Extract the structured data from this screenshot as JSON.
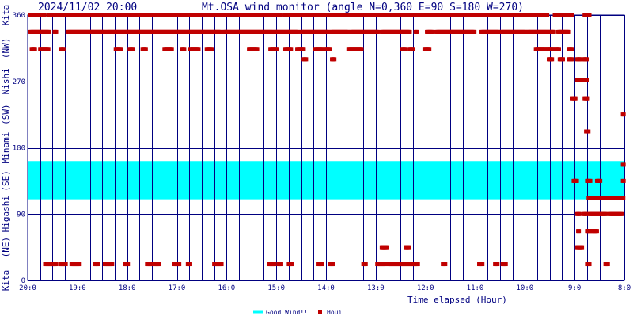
{
  "header": {
    "timestamp": "2024/11/02 20:00",
    "title": "Mt.OSA wind monitor (angle N=0,360 E=90 S=180 W=270)"
  },
  "chart_data": {
    "type": "scatter",
    "xlabel": "Time elapsed (Hour)",
    "x_ticks": [
      "20:0",
      "19:0",
      "18:0",
      "17:0",
      "16:0",
      "15:0",
      "14:0",
      "13:0",
      "12:0",
      "11:0",
      "10:0",
      "9:0",
      "8:0"
    ],
    "y_ticks": [
      "0",
      "90",
      "180",
      "270",
      "360"
    ],
    "ylim": [
      0,
      360
    ],
    "x_hours_range": [
      20,
      8
    ],
    "left_axis_labels": [
      "Kita",
      "(NE)",
      "Higashi",
      "(SE)",
      "Minami",
      "(SW)",
      "Nishi",
      "(NW)",
      "Kita"
    ],
    "good_wind_band": {
      "from_deg": 110,
      "to_deg": 162,
      "color": "#00ffff"
    },
    "series": [
      {
        "name": "Houi",
        "color": "#c00000",
        "rows": [
          {
            "deg": 360,
            "ranges": [
              [
                19.96,
                19.65
              ],
              [
                19.57,
                18.7
              ],
              [
                18.66,
                18.3
              ],
              [
                18.26,
                17.4
              ],
              [
                17.36,
                16.05
              ],
              [
                16.0,
                15.1
              ],
              [
                15.05,
                14.9
              ],
              [
                14.82,
                14.62
              ],
              [
                14.55,
                14.3
              ],
              [
                14.25,
                13.45
              ],
              [
                13.4,
                12.45
              ],
              [
                12.42,
                11.55
              ],
              [
                11.5,
                10.9
              ],
              [
                10.87,
                10.63
              ],
              [
                10.6,
                10.25
              ],
              [
                10.2,
                9.8
              ],
              [
                9.75,
                9.55
              ],
              [
                9.4,
                9.25
              ],
              [
                9.2,
                9.05
              ],
              [
                8.8,
                8.7
              ]
            ]
          },
          {
            "deg": 337,
            "ranges": [
              [
                19.95,
                19.56
              ],
              [
                19.46,
                19.42
              ],
              [
                19.2,
                18.42
              ],
              [
                18.4,
                16.8
              ],
              [
                16.78,
                16.1
              ],
              [
                16.06,
                15.05
              ],
              [
                15.03,
                14.55
              ],
              [
                14.5,
                13.95
              ],
              [
                13.9,
                13.55
              ],
              [
                13.5,
                12.95
              ],
              [
                12.88,
                12.3
              ],
              [
                12.2,
                12.16
              ],
              [
                11.97,
                11.85
              ],
              [
                11.78,
                11.0
              ],
              [
                10.88,
                10.5
              ],
              [
                10.47,
                9.98
              ],
              [
                9.95,
                9.55
              ],
              [
                9.53,
                9.4
              ],
              [
                9.33,
                9.1
              ]
            ]
          },
          {
            "deg": 314,
            "ranges": [
              [
                19.92,
                19.85
              ],
              [
                19.75,
                19.58
              ],
              [
                19.33,
                19.28
              ],
              [
                18.23,
                18.12
              ],
              [
                17.95,
                17.88
              ],
              [
                17.69,
                17.62
              ],
              [
                17.25,
                17.1
              ],
              [
                16.9,
                16.85
              ],
              [
                16.73,
                16.55
              ],
              [
                16.4,
                16.3
              ],
              [
                15.55,
                15.38
              ],
              [
                15.12,
                14.98
              ],
              [
                14.82,
                14.7
              ],
              [
                14.58,
                14.44
              ],
              [
                14.22,
                14.07
              ],
              [
                14.02,
                13.92
              ],
              [
                13.55,
                13.28
              ],
              [
                12.47,
                12.4
              ],
              [
                12.32,
                12.25
              ],
              [
                12.02,
                11.92
              ],
              [
                9.78,
                9.7
              ],
              [
                9.7,
                9.6
              ],
              [
                9.57,
                9.42
              ],
              [
                9.38,
                9.3
              ],
              [
                9.12,
                9.05
              ]
            ]
          },
          {
            "deg": 300,
            "ranges": [
              [
                14.45,
                14.4
              ],
              [
                13.88,
                13.82
              ],
              [
                9.52,
                9.45
              ],
              [
                9.3,
                9.23
              ],
              [
                9.12,
                9.05
              ],
              [
                8.95,
                8.88
              ],
              [
                8.82,
                8.75
              ]
            ]
          },
          {
            "deg": 272,
            "ranges": [
              [
                8.95,
                8.85
              ],
              [
                8.85,
                8.75
              ]
            ]
          },
          {
            "deg": 247,
            "ranges": [
              [
                9.05,
                8.97
              ],
              [
                8.8,
                8.72
              ]
            ]
          },
          {
            "deg": 225,
            "ranges": [
              [
                8.03,
                8.0
              ]
            ]
          },
          {
            "deg": 202,
            "ranges": [
              [
                8.77,
                8.72
              ]
            ]
          },
          {
            "deg": 157,
            "ranges": [
              [
                8.03,
                8.0
              ]
            ]
          },
          {
            "deg": 135,
            "ranges": [
              [
                9.02,
                8.95
              ],
              [
                8.75,
                8.68
              ],
              [
                8.55,
                8.48
              ],
              [
                8.03,
                8.0
              ]
            ]
          },
          {
            "deg": 112,
            "ranges": [
              [
                8.72,
                8.02
              ]
            ]
          },
          {
            "deg": 90,
            "ranges": [
              [
                8.95,
                8.9
              ],
              [
                8.82,
                8.75
              ],
              [
                8.7,
                8.5
              ],
              [
                8.48,
                8.35
              ],
              [
                8.3,
                8.05
              ]
            ]
          },
          {
            "deg": 67,
            "ranges": [
              [
                8.93,
                8.9
              ],
              [
                8.75,
                8.68
              ],
              [
                8.65,
                8.55
              ]
            ]
          },
          {
            "deg": 45,
            "ranges": [
              [
                12.88,
                12.78
              ],
              [
                12.4,
                12.32
              ],
              [
                8.95,
                8.85
              ]
            ]
          },
          {
            "deg": 22,
            "ranges": [
              [
                19.65,
                19.42
              ],
              [
                19.35,
                19.22
              ],
              [
                19.12,
                18.95
              ],
              [
                18.65,
                18.57
              ],
              [
                18.45,
                18.3
              ],
              [
                18.05,
                17.97
              ],
              [
                17.6,
                17.5
              ],
              [
                17.45,
                17.35
              ],
              [
                17.05,
                16.95
              ],
              [
                16.78,
                16.72
              ],
              [
                16.25,
                16.1
              ],
              [
                15.15,
                15.02
              ],
              [
                14.95,
                14.9
              ],
              [
                14.75,
                14.68
              ],
              [
                14.15,
                14.07
              ],
              [
                13.92,
                13.85
              ],
              [
                13.25,
                13.2
              ],
              [
                12.97,
                12.8
              ],
              [
                12.75,
                12.15
              ],
              [
                11.65,
                11.6
              ],
              [
                10.92,
                10.85
              ],
              [
                10.6,
                10.55
              ],
              [
                10.45,
                10.38
              ],
              [
                8.75,
                8.7
              ],
              [
                8.38,
                8.33
              ]
            ]
          }
        ]
      }
    ],
    "legend": [
      {
        "label": "Good Wind!!",
        "color": "#00ffff",
        "kind": "line"
      },
      {
        "label": "Houi",
        "color": "#c00000",
        "kind": "square"
      }
    ],
    "grid": true,
    "legend_position": "bottom-center"
  }
}
